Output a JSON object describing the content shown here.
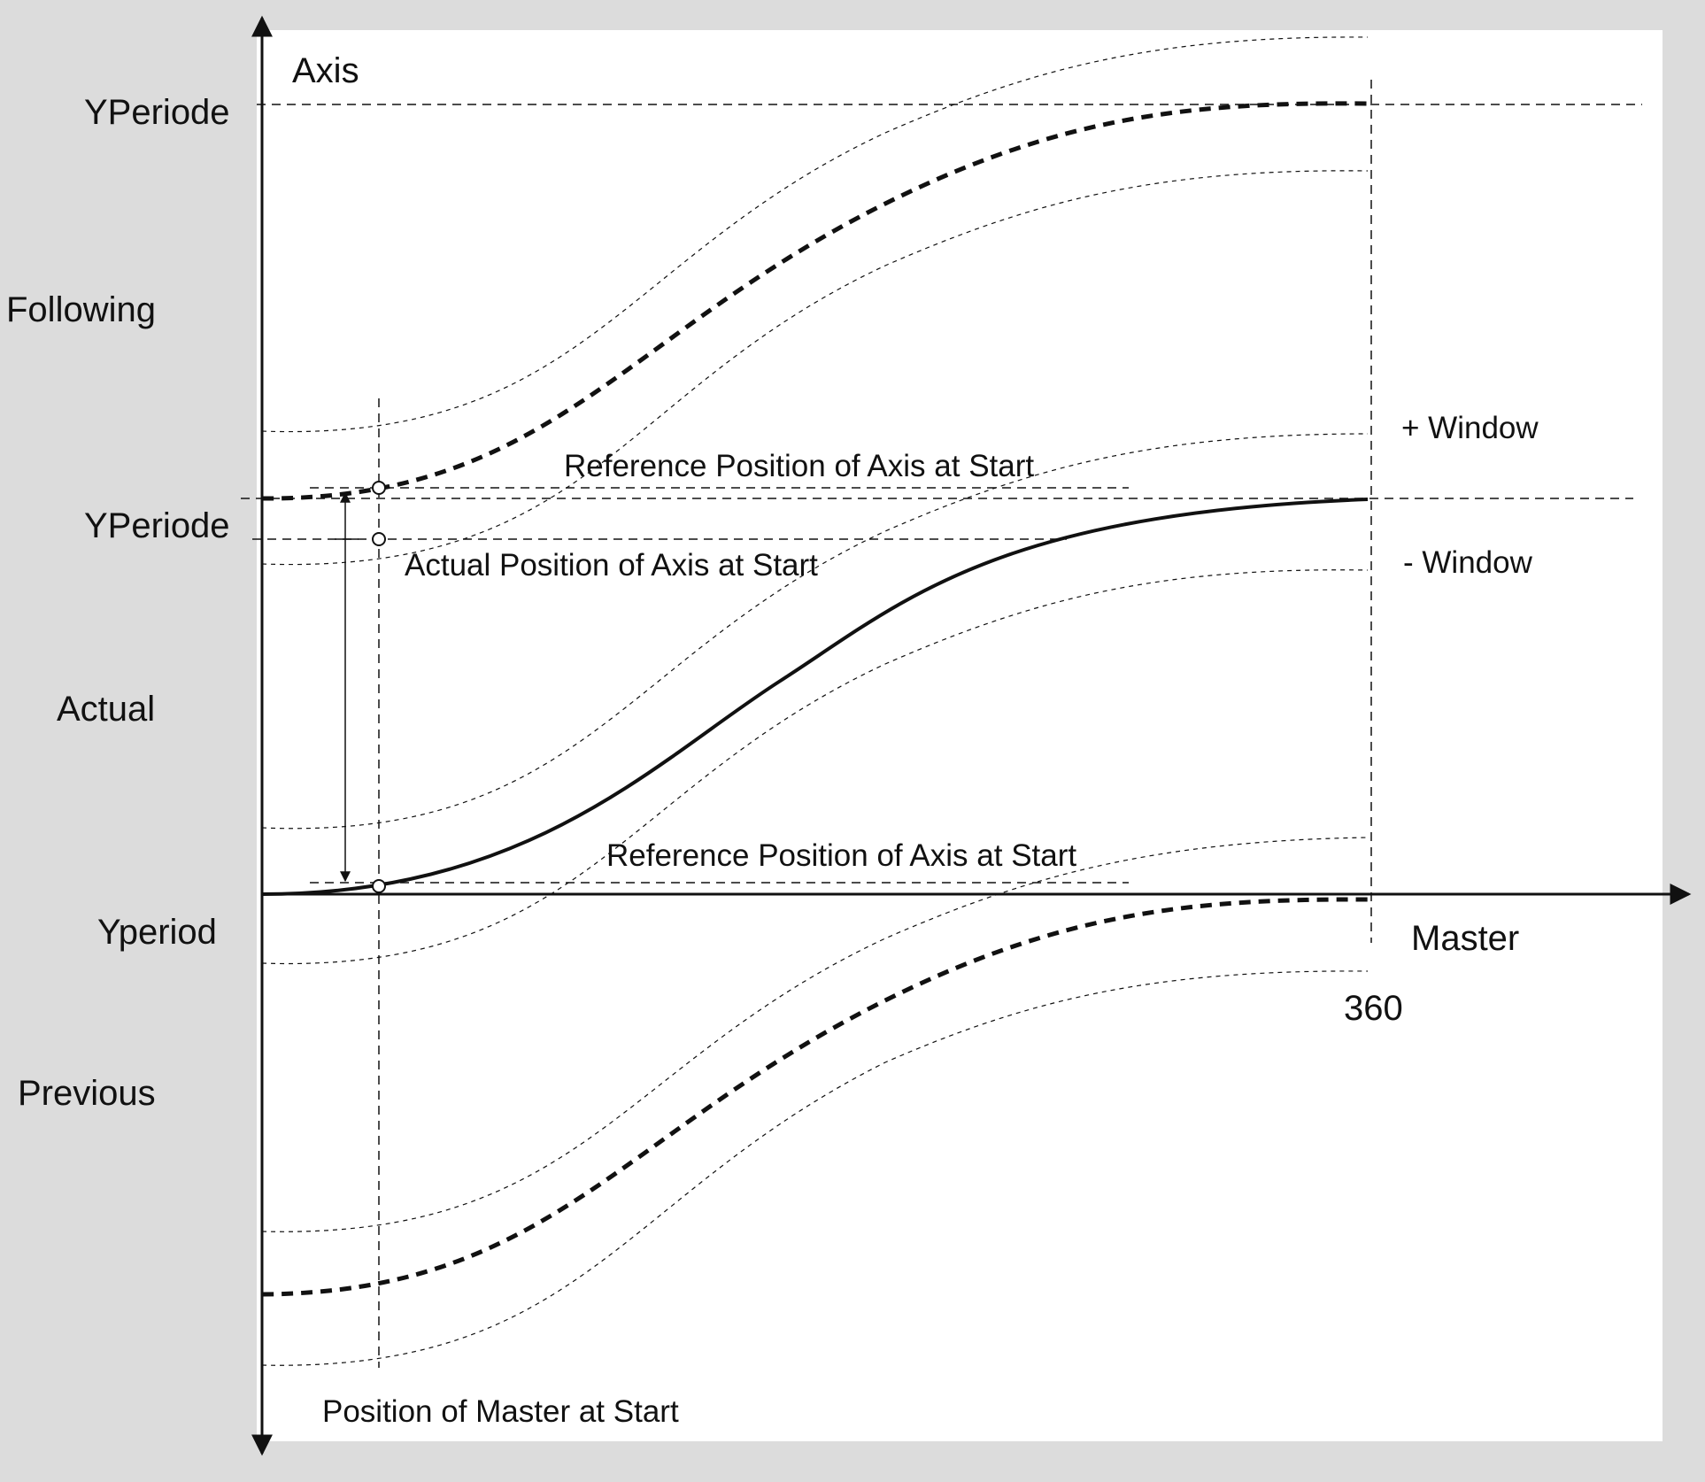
{
  "colors": {
    "background": "#dcdcdc",
    "plot": "#ffffff",
    "ink": "#111111"
  },
  "labels": {
    "axis": "Axis",
    "yperiode_top": "YPeriode",
    "following": "Following",
    "window_plus": "+ Window",
    "ref_start_top": "Reference Position of Axis at Start",
    "yperiode_mid": "YPeriode",
    "actual_start": "Actual Position of Axis at Start",
    "window_minus": "- Window",
    "actual": "Actual",
    "ref_start_bottom": "Reference Position of Axis at Start",
    "yperiod": "Yperiod",
    "master": "Master",
    "tick_360": "360",
    "previous": "Previous",
    "master_start": "Position of Master at Start"
  }
}
